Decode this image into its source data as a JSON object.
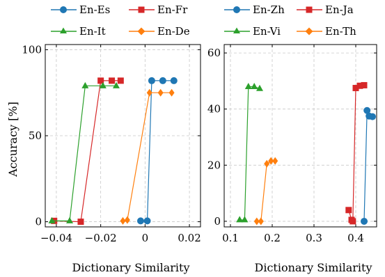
{
  "chart_data": [
    {
      "type": "line",
      "xlabel": "Dictionary Similarity",
      "ylabel": "Accuracy [%]",
      "xlim": [
        -0.045,
        0.025
      ],
      "ylim": [
        -3,
        103
      ],
      "xticks": [
        -0.04,
        -0.02,
        0,
        0.02
      ],
      "xtick_labels": [
        "−0.04",
        "−0.02",
        "0",
        "0.02"
      ],
      "yticks": [
        0,
        50,
        100
      ],
      "ytick_labels": [
        "0",
        "50",
        "100"
      ],
      "grid": true,
      "legend_position": "top",
      "series": [
        {
          "name": "En-Es",
          "color": "#1f77b4",
          "marker": "circle",
          "x": [
            -0.002,
            0.001,
            0.003,
            0.008,
            0.013
          ],
          "y": [
            0.5,
            0.5,
            82,
            82,
            82
          ]
        },
        {
          "name": "En-Fr",
          "color": "#d62728",
          "marker": "square",
          "x": [
            -0.041,
            -0.029,
            -0.02,
            -0.015,
            -0.011
          ],
          "y": [
            0.5,
            0,
            82,
            82,
            82
          ]
        },
        {
          "name": "En-It",
          "color": "#2ca02c",
          "marker": "triangle",
          "x": [
            -0.042,
            -0.034,
            -0.027,
            -0.019,
            -0.013
          ],
          "y": [
            0.5,
            0.5,
            79,
            79,
            79
          ]
        },
        {
          "name": "En-De",
          "color": "#ff7f0e",
          "marker": "diamond",
          "x": [
            -0.01,
            -0.008,
            0.002,
            0.007,
            0.012
          ],
          "y": [
            0.5,
            1,
            75,
            75,
            75
          ]
        }
      ]
    },
    {
      "type": "line",
      "xlabel": "Dictionary Similarity",
      "ylabel": "",
      "xlim": [
        0.085,
        0.45
      ],
      "ylim": [
        -2,
        63
      ],
      "xticks": [
        0.1,
        0.2,
        0.3,
        0.4
      ],
      "xtick_labels": [
        "0.1",
        "0.2",
        "0.3",
        "0.4"
      ],
      "yticks": [
        0,
        20,
        40,
        60
      ],
      "ytick_labels": [
        "0",
        "20",
        "40",
        "60"
      ],
      "grid": true,
      "legend_position": "top",
      "series": [
        {
          "name": "En-Zh",
          "color": "#1f77b4",
          "marker": "circle",
          "x": [
            0.42,
            0.427,
            0.432,
            0.44
          ],
          "y": [
            0,
            39.5,
            37.5,
            37.3
          ]
        },
        {
          "name": "En-Ja",
          "color": "#d62728",
          "marker": "square",
          "x": [
            0.383,
            0.39,
            0.393,
            0.4,
            0.41,
            0.42
          ],
          "y": [
            4,
            0.5,
            0,
            47.5,
            48.3,
            48.5
          ]
        },
        {
          "name": "En-Vi",
          "color": "#2ca02c",
          "marker": "triangle",
          "x": [
            0.122,
            0.134,
            0.143,
            0.157,
            0.17
          ],
          "y": [
            0.5,
            0.5,
            48,
            48,
            47.3
          ]
        },
        {
          "name": "En-Th",
          "color": "#ff7f0e",
          "marker": "diamond",
          "x": [
            0.163,
            0.173,
            0.187,
            0.197,
            0.207
          ],
          "y": [
            0,
            0,
            20.5,
            21.5,
            21.5
          ]
        }
      ]
    }
  ]
}
